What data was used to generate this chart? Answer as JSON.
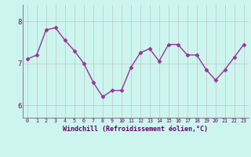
{
  "x": [
    0,
    1,
    2,
    3,
    4,
    5,
    6,
    7,
    8,
    9,
    10,
    11,
    12,
    13,
    14,
    15,
    16,
    17,
    18,
    19,
    20,
    21,
    22,
    23
  ],
  "y": [
    7.1,
    7.2,
    7.8,
    7.85,
    7.55,
    7.3,
    7.0,
    6.55,
    6.2,
    6.35,
    6.35,
    6.9,
    7.25,
    7.35,
    7.05,
    7.45,
    7.45,
    7.2,
    7.2,
    6.85,
    6.6,
    6.85,
    7.15,
    7.45
  ],
  "line_color": "#993399",
  "marker": "D",
  "marker_size": 2.5,
  "linewidth": 1.0,
  "background_color": "#ccf5ee",
  "grid_color": "#bbbbbb",
  "xlabel": "Windchill (Refroidissement éolien,°C)",
  "xlabel_color": "#660066",
  "tick_color": "#660066",
  "yticks": [
    6,
    7,
    8
  ],
  "ylim": [
    5.7,
    8.4
  ],
  "xlim": [
    -0.5,
    23.5
  ],
  "xtick_labels": [
    "0",
    "1",
    "2",
    "3",
    "4",
    "5",
    "6",
    "7",
    "8",
    "9",
    "10",
    "11",
    "12",
    "13",
    "14",
    "15",
    "16",
    "17",
    "18",
    "19",
    "20",
    "21",
    "22",
    "23"
  ]
}
